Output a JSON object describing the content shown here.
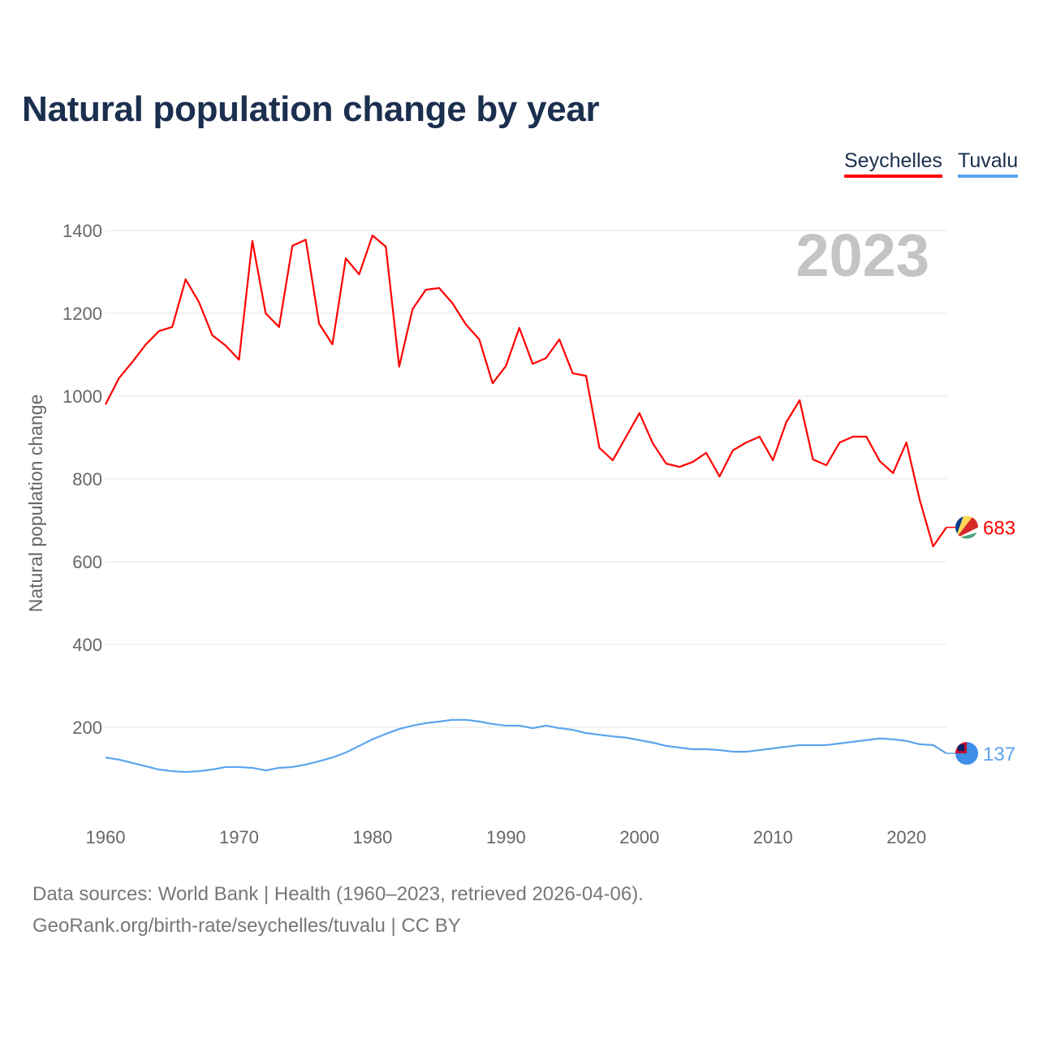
{
  "title": "Natural population change by year",
  "legend": [
    {
      "name": "Seychelles",
      "color": "#ff0000"
    },
    {
      "name": "Tuvalu",
      "color": "#5ba4ee"
    }
  ],
  "footer": {
    "line1": "Data sources: World Bank | Health (1960–2023, retrieved 2026-04-06).",
    "line2": "GeoRank.org/birth-rate/seychelles/tuvalu | CC BY"
  },
  "chart_data": {
    "type": "line",
    "title": "Natural population change by year",
    "year_label": "2023",
    "xlabel": "",
    "ylabel": "Natural population change",
    "xlim": [
      1960,
      2023
    ],
    "ylim": [
      0,
      1400
    ],
    "x_ticks": [
      "1960",
      "1970",
      "1980",
      "1990",
      "2000",
      "2010",
      "2020"
    ],
    "y_ticks": [
      "200",
      "400",
      "600",
      "800",
      "1000",
      "1200",
      "1400"
    ],
    "grid": true,
    "legend_position": "top-right",
    "x": [
      1960,
      1961,
      1962,
      1963,
      1964,
      1965,
      1966,
      1967,
      1968,
      1969,
      1970,
      1971,
      1972,
      1973,
      1974,
      1975,
      1976,
      1977,
      1978,
      1979,
      1980,
      1981,
      1982,
      1983,
      1984,
      1985,
      1986,
      1987,
      1988,
      1989,
      1990,
      1991,
      1992,
      1993,
      1994,
      1995,
      1996,
      1997,
      1998,
      1999,
      2000,
      2001,
      2002,
      2003,
      2004,
      2005,
      2006,
      2007,
      2008,
      2009,
      2010,
      2011,
      2012,
      2013,
      2014,
      2015,
      2016,
      2017,
      2018,
      2019,
      2020,
      2021,
      2022,
      2023
    ],
    "series": [
      {
        "name": "Seychelles",
        "color": "#ff0000",
        "end_label": "683",
        "values": [
          980,
          1043,
          1082,
          1124,
          1157,
          1167,
          1282,
          1227,
          1147,
          1122,
          1088,
          1375,
          1200,
          1167,
          1363,
          1378,
          1175,
          1125,
          1333,
          1294,
          1388,
          1361,
          1071,
          1210,
          1257,
          1261,
          1224,
          1173,
          1137,
          1031,
          1073,
          1165,
          1078,
          1092,
          1137,
          1055,
          1049,
          875,
          845,
          902,
          959,
          886,
          837,
          829,
          841,
          863,
          806,
          869,
          888,
          902,
          845,
          937,
          990,
          847,
          833,
          888,
          902,
          902,
          843,
          814,
          888,
          749,
          637,
          683
        ]
      },
      {
        "name": "Tuvalu",
        "color": "#5ba4ee",
        "end_label": "137",
        "values": [
          127,
          122,
          114,
          106,
          98,
          94,
          92,
          94,
          98,
          104,
          104,
          102,
          96,
          102,
          104,
          110,
          118,
          127,
          139,
          155,
          171,
          184,
          196,
          204,
          210,
          214,
          218,
          218,
          214,
          208,
          204,
          204,
          198,
          204,
          198,
          194,
          186,
          182,
          178,
          175,
          169,
          163,
          155,
          151,
          147,
          147,
          145,
          141,
          141,
          145,
          149,
          153,
          157,
          157,
          157,
          161,
          165,
          169,
          173,
          171,
          167,
          159,
          157,
          137
        ]
      }
    ]
  }
}
